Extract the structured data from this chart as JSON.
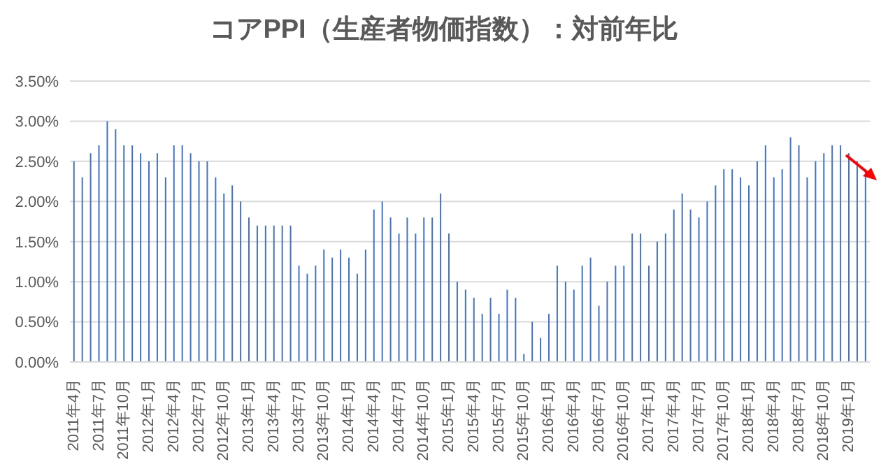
{
  "chart_data": {
    "type": "bar",
    "title": "コアPPI（生産者物価指数）：対前年比",
    "categories": [
      "2011年4月",
      null,
      null,
      "2011年7月",
      null,
      null,
      "2011年10月",
      null,
      null,
      "2012年1月",
      null,
      null,
      "2012年4月",
      null,
      null,
      "2012年7月",
      null,
      null,
      "2012年10月",
      null,
      null,
      "2013年1月",
      null,
      null,
      "2013年4月",
      null,
      null,
      "2013年7月",
      null,
      null,
      "2013年10月",
      null,
      null,
      "2014年1月",
      null,
      null,
      "2014年4月",
      null,
      null,
      "2014年7月",
      null,
      null,
      "2014年10月",
      null,
      null,
      "2015年1月",
      null,
      null,
      "2015年4月",
      null,
      null,
      "2015年7月",
      null,
      null,
      "2015年10月",
      null,
      null,
      "2016年1月",
      null,
      null,
      "2016年4月",
      null,
      null,
      "2016年7月",
      null,
      null,
      "2016年10月",
      null,
      null,
      "2017年1月",
      null,
      null,
      "2017年4月",
      null,
      null,
      "2017年7月",
      null,
      null,
      "2017年10月",
      null,
      null,
      "2018年1月",
      null,
      null,
      "2018年4月",
      null,
      null,
      "2018年7月",
      null,
      null,
      "2018年10月",
      null,
      null,
      "2019年1月",
      null,
      null
    ],
    "values": [
      2.5,
      2.3,
      2.6,
      2.7,
      3.0,
      2.9,
      2.7,
      2.7,
      2.6,
      2.5,
      2.6,
      2.3,
      2.7,
      2.7,
      2.6,
      2.5,
      2.5,
      2.3,
      2.1,
      2.2,
      2.0,
      1.8,
      1.7,
      1.7,
      1.7,
      1.7,
      1.7,
      1.2,
      1.1,
      1.2,
      1.4,
      1.3,
      1.4,
      1.3,
      1.1,
      1.4,
      1.9,
      2.0,
      1.8,
      1.6,
      1.8,
      1.6,
      1.8,
      1.8,
      2.1,
      1.6,
      1.0,
      0.9,
      0.8,
      0.6,
      0.8,
      0.6,
      0.9,
      0.8,
      0.1,
      0.5,
      0.3,
      0.6,
      1.2,
      1.0,
      0.9,
      1.2,
      1.3,
      0.7,
      1.0,
      1.2,
      1.2,
      1.6,
      1.6,
      1.2,
      1.5,
      1.6,
      1.9,
      2.1,
      1.9,
      1.8,
      2.0,
      2.2,
      2.4,
      2.4,
      2.3,
      2.2,
      2.5,
      2.7,
      2.3,
      2.4,
      2.8,
      2.7,
      2.3,
      2.5,
      2.6,
      2.7,
      2.7,
      2.6,
      2.5,
      2.4
    ],
    "color": "#4472c4",
    "ylim": [
      0,
      3.5
    ],
    "yticks": [
      {
        "value": 0,
        "label": "0.00%"
      },
      {
        "value": 0.5,
        "label": "0.50%"
      },
      {
        "value": 1,
        "label": "1.00%"
      },
      {
        "value": 1.5,
        "label": "1.50%"
      },
      {
        "value": 2,
        "label": "2.00%"
      },
      {
        "value": 2.5,
        "label": "2.50%"
      },
      {
        "value": 3,
        "label": "3.00%"
      },
      {
        "value": 3.5,
        "label": "3.50%"
      }
    ],
    "grid": "y"
  }
}
